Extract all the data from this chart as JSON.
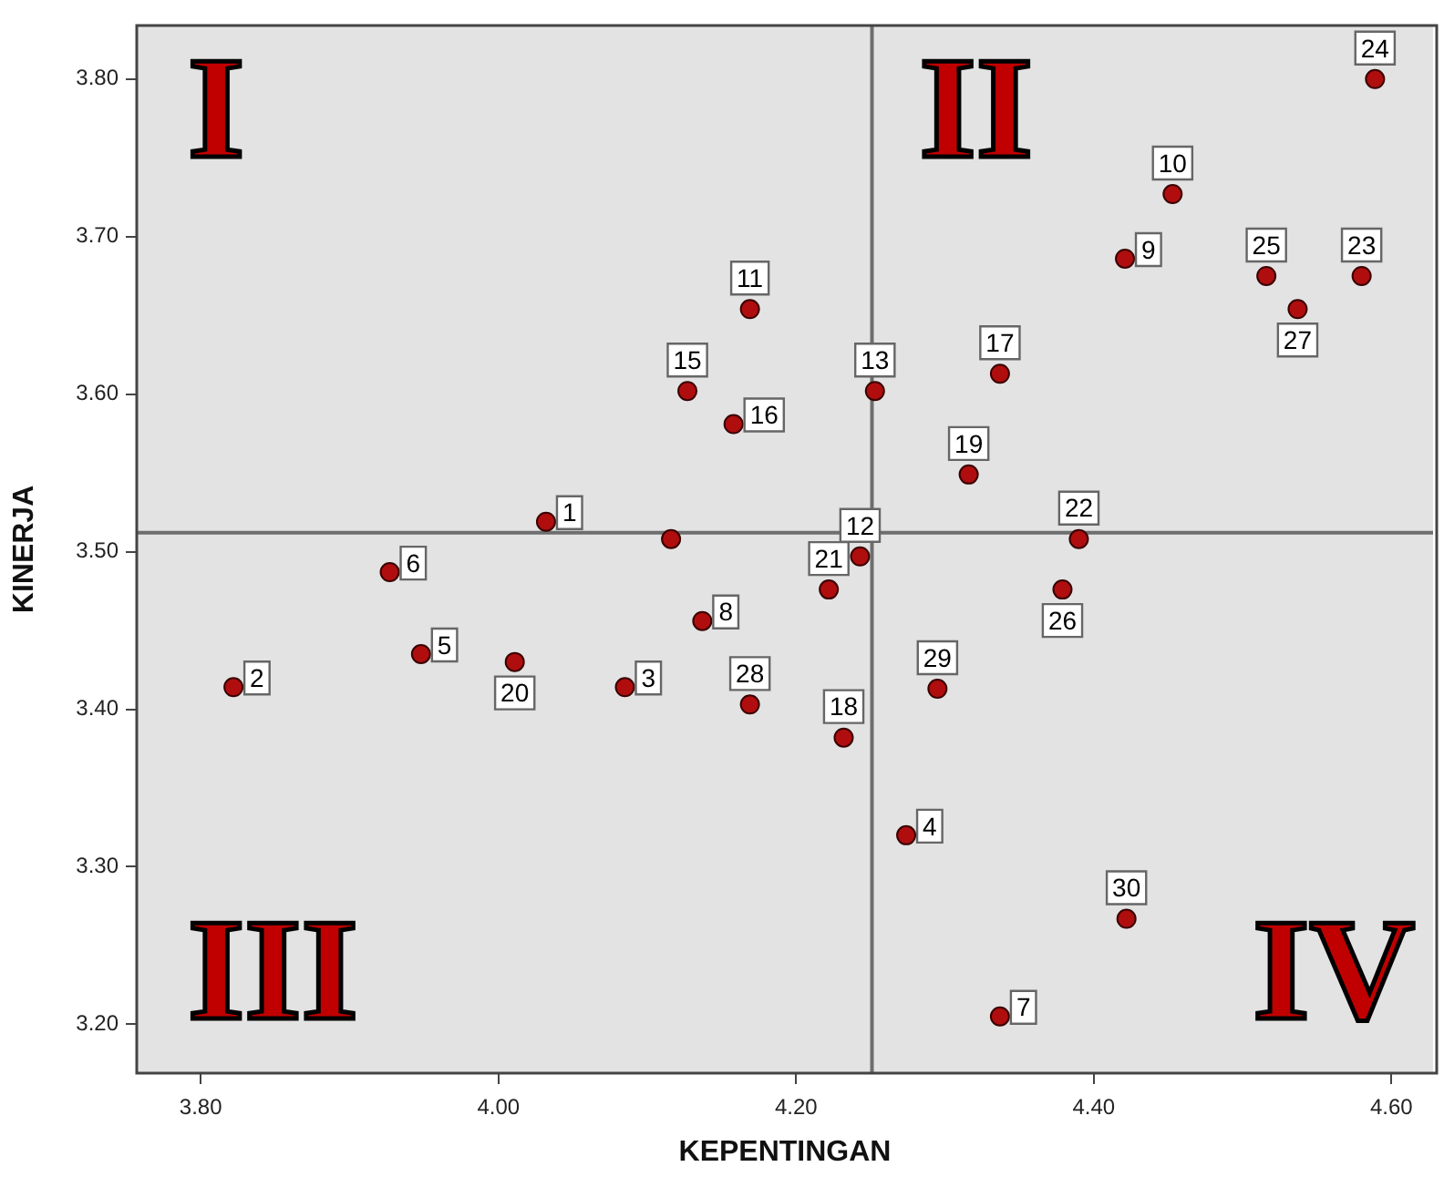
{
  "chart_data": {
    "type": "scatter",
    "xlabel": "KEPENTINGAN",
    "ylabel": "KINERJA",
    "x": [
      4.032,
      3.822,
      4.085,
      4.274,
      3.948,
      3.927,
      4.337,
      4.137,
      4.421,
      4.453,
      4.169,
      4.243,
      4.253,
      4.116,
      4.127,
      4.158,
      4.337,
      4.232,
      4.316,
      4.011,
      4.222,
      4.39,
      4.58,
      4.589,
      4.516,
      4.379,
      4.537,
      4.169,
      4.295,
      4.422
    ],
    "values": [
      3.519,
      3.414,
      3.414,
      3.32,
      3.435,
      3.487,
      3.205,
      3.456,
      3.686,
      3.727,
      3.654,
      3.497,
      3.602,
      3.508,
      3.602,
      3.581,
      3.613,
      3.382,
      3.549,
      3.43,
      3.476,
      3.508,
      3.675,
      3.8,
      3.675,
      3.476,
      3.654,
      3.403,
      3.413,
      3.267
    ],
    "color": "#b00e0e",
    "marker": "circle",
    "xlim": [
      3.757,
      4.628
    ],
    "ylim": [
      3.169,
      3.834
    ],
    "xticks": [
      {
        "value": 3.8,
        "label": "3.80"
      },
      {
        "value": 4.0,
        "label": "4.00"
      },
      {
        "value": 4.2,
        "label": "4.20"
      },
      {
        "value": 4.4,
        "label": "4.40"
      },
      {
        "value": 4.6,
        "label": "4.60"
      }
    ],
    "yticks": [
      {
        "value": 3.2,
        "label": "3.20"
      },
      {
        "value": 3.3,
        "label": "3.30"
      },
      {
        "value": 3.4,
        "label": "3.40"
      },
      {
        "value": 3.5,
        "label": "3.50"
      },
      {
        "value": 3.6,
        "label": "3.60"
      },
      {
        "value": 3.7,
        "label": "3.70"
      },
      {
        "value": 3.8,
        "label": "3.80"
      }
    ],
    "ref_lines": [
      {
        "axis": "x",
        "value": 4.251,
        "color": "#6e6e6e"
      },
      {
        "axis": "y",
        "value": 3.512,
        "color": "#6e6e6e"
      }
    ],
    "annotations": [
      "I",
      "II",
      "III",
      "IV",
      {
        "text": "1",
        "x": 4.032,
        "y": 3.519
      },
      {
        "text": "2",
        "x": 3.822,
        "y": 3.414
      },
      {
        "text": "3",
        "x": 4.085,
        "y": 3.414
      },
      {
        "text": "4",
        "x": 4.274,
        "y": 3.32
      },
      {
        "text": "5",
        "x": 3.948,
        "y": 3.435
      },
      {
        "text": "6",
        "x": 3.927,
        "y": 3.487
      },
      {
        "text": "7",
        "x": 4.337,
        "y": 3.205
      },
      {
        "text": "8",
        "x": 4.137,
        "y": 3.456
      },
      {
        "text": "9",
        "x": 4.421,
        "y": 3.686
      },
      {
        "text": "10",
        "x": 4.453,
        "y": 3.727
      },
      {
        "text": "11",
        "x": 4.169,
        "y": 3.654
      },
      {
        "text": "12",
        "x": 4.243,
        "y": 3.497
      },
      {
        "text": "13",
        "x": 4.253,
        "y": 3.602
      },
      {
        "text": "15",
        "x": 4.127,
        "y": 3.602
      },
      {
        "text": "16",
        "x": 4.158,
        "y": 3.581
      },
      {
        "text": "17",
        "x": 4.337,
        "y": 3.613
      },
      {
        "text": "18",
        "x": 4.232,
        "y": 3.382
      },
      {
        "text": "19",
        "x": 4.316,
        "y": 3.549
      },
      {
        "text": "20",
        "x": 4.011,
        "y": 3.43
      },
      {
        "text": "21",
        "x": 4.222,
        "y": 3.476
      },
      {
        "text": "22",
        "x": 4.39,
        "y": 3.508
      },
      {
        "text": "23",
        "x": 4.58,
        "y": 3.675
      },
      {
        "text": "24",
        "x": 4.589,
        "y": 3.8
      },
      {
        "text": "25",
        "x": 4.516,
        "y": 3.675
      },
      {
        "text": "26",
        "x": 4.379,
        "y": 3.476
      },
      {
        "text": "27",
        "x": 4.537,
        "y": 3.654
      },
      {
        "text": "28",
        "x": 4.169,
        "y": 3.403
      },
      {
        "text": "29",
        "x": 4.295,
        "y": 3.413
      },
      {
        "text": "30",
        "x": 4.422,
        "y": 3.267
      }
    ],
    "grid": false,
    "legend": false
  }
}
